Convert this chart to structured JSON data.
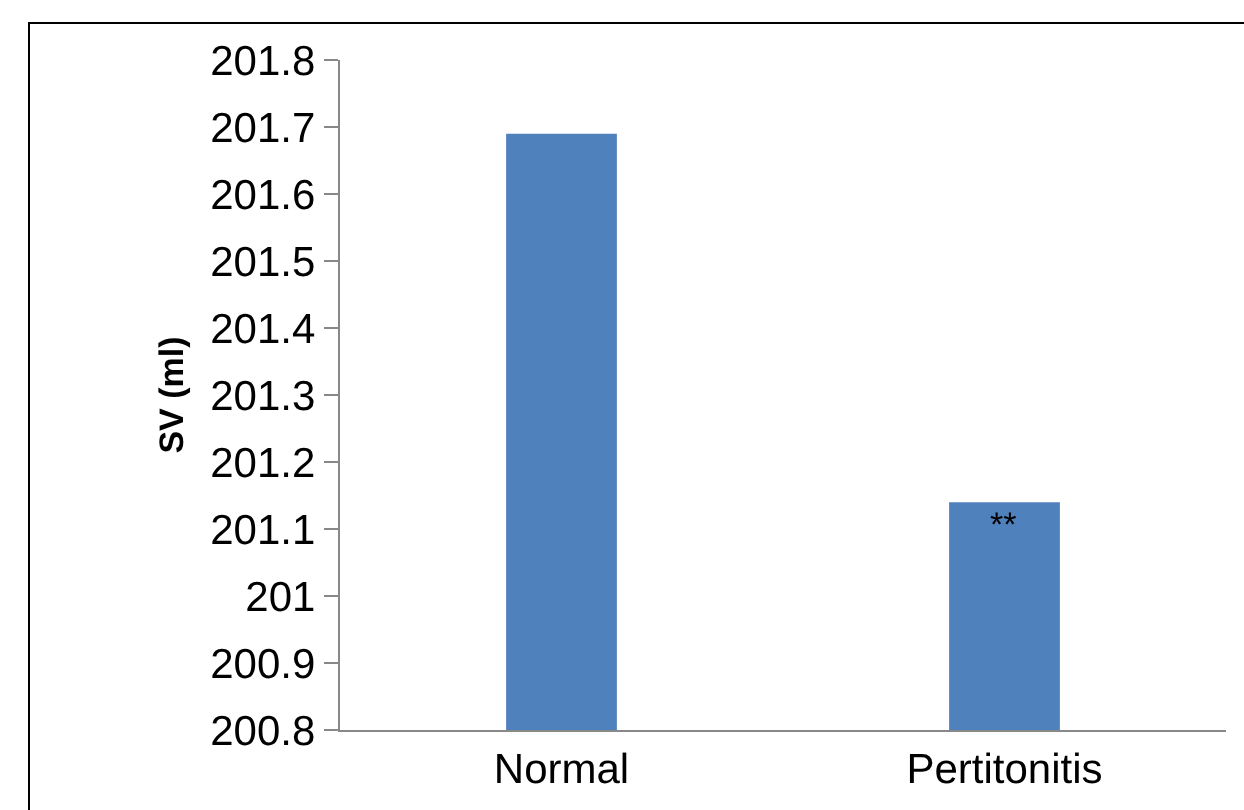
{
  "chart_data": {
    "type": "bar",
    "ylabel": "SV (ml)",
    "categories": [
      "Normal",
      "Pertitonitis"
    ],
    "values": [
      201.69,
      201.14
    ],
    "color": "#4f81bd",
    "ylim": [
      200.8,
      201.8
    ],
    "yticks": [
      200.8,
      200.9,
      201,
      201.1,
      201.2,
      201.3,
      201.4,
      201.5,
      201.6,
      201.7,
      201.8
    ],
    "grid": false,
    "legend": false,
    "annotations": [
      {
        "text": "**",
        "x": "Pertitonitis",
        "y": 201.14
      }
    ]
  }
}
